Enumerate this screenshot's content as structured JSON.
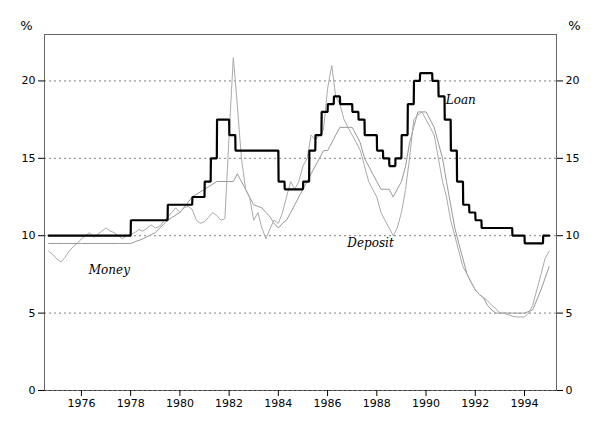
{
  "chart_data": {
    "type": "line",
    "ylabel": "%",
    "y2label": "%",
    "xlim": [
      1974.5,
      1995.3
    ],
    "xticks": [
      1976,
      1978,
      1980,
      1982,
      1984,
      1986,
      1988,
      1990,
      1992,
      1994
    ],
    "ylim": [
      0,
      23
    ],
    "yticks": [
      0,
      5,
      10,
      15,
      20
    ],
    "y2lim": [
      0,
      23
    ],
    "y2ticks": [
      0,
      5,
      10,
      15,
      20
    ],
    "grid": true,
    "annotations": [
      {
        "text": "Money",
        "x": 1976.3,
        "y": 7.5
      },
      {
        "text": "Deposit",
        "x": 1986.8,
        "y": 9.3
      },
      {
        "text": "Loan",
        "x": 1990.8,
        "y": 18.5
      }
    ],
    "series": [
      {
        "color": "#999999",
        "x": [
          1974.67,
          1975.0,
          1975.5,
          1976.0,
          1976.5,
          1977.0,
          1977.5,
          1978.0,
          1978.5,
          1979.0,
          1979.5,
          1980.0,
          1980.5,
          1981.0,
          1981.5,
          1982.0,
          1982.17,
          1982.33,
          1982.5,
          1982.67,
          1982.83,
          1983.0,
          1983.33,
          1983.5,
          1983.67,
          1983.83,
          1984.0,
          1984.17,
          1984.33,
          1984.5,
          1984.67,
          1984.83,
          1985.0,
          1985.17,
          1985.33,
          1985.5,
          1985.67,
          1985.83,
          1986.0,
          1986.17,
          1986.33,
          1986.5,
          1986.67,
          1986.83,
          1987.0,
          1987.17,
          1987.33,
          1987.5,
          1987.67,
          1987.83,
          1988.0,
          1988.17,
          1988.33,
          1988.5,
          1988.67,
          1988.83,
          1989.0,
          1989.17,
          1989.33,
          1989.5,
          1989.67,
          1989.83,
          1990.0,
          1990.17,
          1990.33,
          1990.5,
          1990.67,
          1990.83,
          1991.0,
          1991.17,
          1991.33,
          1991.5,
          1991.67,
          1991.83,
          1992.0,
          1992.17,
          1992.33,
          1992.5,
          1992.67,
          1992.83,
          1993.0,
          1993.33,
          1993.67,
          1994.0,
          1994.33,
          1994.67,
          1995.0
        ],
        "values": [
          9.5,
          9.5,
          9.5,
          9.5,
          9.5,
          9.5,
          9.5,
          9.5,
          9.8,
          10.2,
          11.0,
          11.5,
          12.5,
          13.0,
          13.5,
          13.5,
          13.5,
          14.0,
          13.5,
          13.0,
          12.5,
          12.0,
          11.8,
          11.5,
          11.2,
          10.8,
          10.5,
          10.8,
          11.0,
          11.5,
          12.0,
          12.5,
          13.0,
          13.5,
          14.0,
          14.5,
          15.0,
          15.5,
          15.5,
          16.0,
          16.5,
          17.0,
          17.0,
          17.0,
          17.0,
          16.5,
          16.0,
          15.0,
          14.5,
          14.0,
          13.5,
          13.0,
          13.0,
          13.0,
          12.5,
          13.0,
          13.5,
          14.5,
          16.0,
          17.0,
          18.0,
          18.0,
          18.0,
          17.5,
          17.0,
          16.0,
          15.0,
          13.5,
          12.0,
          10.5,
          9.5,
          8.5,
          7.5,
          7.0,
          6.5,
          6.2,
          6.0,
          5.5,
          5.2,
          5.0,
          5.0,
          5.0,
          5.0,
          5.0,
          5.2,
          6.5,
          8.0
        ]
      },
      {
        "color": "#aaaaaa",
        "x": [
          1974.67,
          1974.83,
          1975.0,
          1975.17,
          1975.33,
          1975.5,
          1975.67,
          1975.83,
          1976.0,
          1976.17,
          1976.33,
          1976.5,
          1976.67,
          1976.83,
          1977.0,
          1977.17,
          1977.33,
          1977.5,
          1977.67,
          1977.83,
          1978.0,
          1978.17,
          1978.33,
          1978.5,
          1978.67,
          1978.83,
          1979.0,
          1979.17,
          1979.33,
          1979.5,
          1979.67,
          1979.83,
          1980.0,
          1980.17,
          1980.33,
          1980.5,
          1980.67,
          1980.83,
          1981.0,
          1981.17,
          1981.33,
          1981.5,
          1981.67,
          1981.83,
          1982.0,
          1982.17,
          1982.33,
          1982.5,
          1982.67,
          1982.83,
          1983.0,
          1983.17,
          1983.33,
          1983.5,
          1983.67,
          1983.83,
          1984.0,
          1984.17,
          1984.33,
          1984.5,
          1984.67,
          1984.83,
          1985.0,
          1985.17,
          1985.33,
          1985.5,
          1985.67,
          1985.83,
          1986.0,
          1986.17,
          1986.33,
          1986.5,
          1986.67,
          1986.83,
          1987.0,
          1987.17,
          1987.33,
          1987.5,
          1987.67,
          1987.83,
          1988.0,
          1988.17,
          1988.33,
          1988.5,
          1988.67,
          1988.83,
          1989.0,
          1989.17,
          1989.33,
          1989.5,
          1989.67,
          1989.83,
          1990.0,
          1990.17,
          1990.33,
          1990.5,
          1990.67,
          1990.83,
          1991.0,
          1991.17,
          1991.33,
          1991.5,
          1991.67,
          1991.83,
          1992.0,
          1992.17,
          1992.33,
          1992.5,
          1992.67,
          1992.83,
          1993.0,
          1993.17,
          1993.33,
          1993.5,
          1993.67,
          1993.83,
          1994.0,
          1994.17,
          1994.33,
          1994.5,
          1994.67,
          1994.83,
          1995.0
        ],
        "values": [
          9.0,
          8.8,
          8.5,
          8.3,
          8.6,
          9.0,
          9.3,
          9.5,
          9.8,
          10.0,
          10.2,
          9.9,
          10.1,
          10.3,
          10.5,
          10.3,
          10.2,
          10.0,
          9.8,
          10.0,
          10.1,
          10.2,
          10.4,
          10.3,
          10.5,
          10.7,
          10.5,
          10.6,
          10.9,
          11.2,
          11.5,
          11.8,
          11.5,
          11.8,
          11.9,
          11.7,
          11.0,
          10.8,
          10.9,
          11.2,
          11.5,
          11.3,
          11.0,
          11.1,
          16.5,
          21.5,
          18.5,
          15.0,
          13.0,
          12.5,
          11.0,
          11.5,
          10.5,
          9.8,
          10.5,
          11.0,
          10.8,
          11.5,
          12.5,
          13.5,
          13.0,
          13.5,
          14.5,
          15.0,
          16.5,
          16.2,
          16.5,
          16.8,
          19.5,
          21.0,
          19.0,
          18.5,
          17.5,
          17.0,
          16.5,
          16.0,
          15.5,
          14.5,
          13.5,
          13.0,
          12.5,
          11.5,
          11.0,
          10.5,
          10.0,
          10.5,
          11.5,
          13.0,
          15.0,
          17.5,
          17.8,
          18.0,
          17.5,
          17.0,
          16.5,
          15.0,
          13.5,
          12.5,
          11.0,
          10.0,
          9.0,
          8.0,
          7.5,
          7.0,
          6.5,
          6.2,
          6.0,
          5.8,
          5.5,
          5.3,
          5.0,
          5.0,
          4.9,
          4.8,
          4.75,
          4.75,
          4.75,
          5.0,
          5.5,
          6.5,
          7.5,
          8.5,
          9.0
        ]
      },
      {
        "color": "#000000",
        "x": [
          1974.67,
          1975.0,
          1976.0,
          1977.0,
          1978.0,
          1978.01,
          1979.0,
          1979.5,
          1979.51,
          1980.0,
          1980.5,
          1980.51,
          1981.0,
          1981.01,
          1981.25,
          1981.26,
          1981.5,
          1981.51,
          1982.0,
          1982.01,
          1982.25,
          1982.26,
          1982.5,
          1982.51,
          1983.0,
          1983.01,
          1983.5,
          1983.51,
          1984.0,
          1984.01,
          1984.25,
          1984.26,
          1985.0,
          1985.01,
          1985.25,
          1985.26,
          1985.5,
          1985.51,
          1985.75,
          1985.76,
          1986.0,
          1986.01,
          1986.25,
          1986.26,
          1986.5,
          1986.51,
          1987.0,
          1987.01,
          1987.25,
          1987.26,
          1987.5,
          1987.51,
          1988.0,
          1988.01,
          1988.25,
          1988.26,
          1988.5,
          1988.51,
          1988.75,
          1988.76,
          1989.0,
          1989.01,
          1989.25,
          1989.26,
          1989.5,
          1989.51,
          1989.75,
          1989.76,
          1990.0,
          1990.01,
          1990.25,
          1990.26,
          1990.5,
          1990.51,
          1990.75,
          1990.76,
          1991.0,
          1991.01,
          1991.25,
          1991.26,
          1991.5,
          1991.51,
          1991.75,
          1991.76,
          1992.0,
          1992.01,
          1992.25,
          1992.26,
          1993.0,
          1993.01,
          1993.5,
          1993.51,
          1994.0,
          1994.01,
          1994.5,
          1994.51,
          1994.75,
          1994.76,
          1995.0
        ],
        "values": [
          10.0,
          10.0,
          10.0,
          10.0,
          10.0,
          11.0,
          11.0,
          11.0,
          12.0,
          12.0,
          12.0,
          12.5,
          12.5,
          13.5,
          13.5,
          15.0,
          15.0,
          17.5,
          17.5,
          16.5,
          16.5,
          15.5,
          15.5,
          15.5,
          15.5,
          15.5,
          15.5,
          15.5,
          15.5,
          13.5,
          13.5,
          13.0,
          13.0,
          13.5,
          13.5,
          15.5,
          15.5,
          16.5,
          16.5,
          18.0,
          18.0,
          18.5,
          18.5,
          19.0,
          19.0,
          18.5,
          18.5,
          18.0,
          18.0,
          17.5,
          17.5,
          16.5,
          16.5,
          15.5,
          15.5,
          15.0,
          15.0,
          14.5,
          14.5,
          15.0,
          15.0,
          16.5,
          16.5,
          18.5,
          18.5,
          20.0,
          20.0,
          20.5,
          20.5,
          20.5,
          20.5,
          20.0,
          20.0,
          19.0,
          19.0,
          17.5,
          17.5,
          15.5,
          15.5,
          13.5,
          13.5,
          12.0,
          12.0,
          11.5,
          11.5,
          11.0,
          11.0,
          10.5,
          10.5,
          10.5,
          10.5,
          10.0,
          10.0,
          9.5,
          9.5,
          9.5,
          9.5,
          10.0,
          10.0
        ]
      }
    ]
  }
}
